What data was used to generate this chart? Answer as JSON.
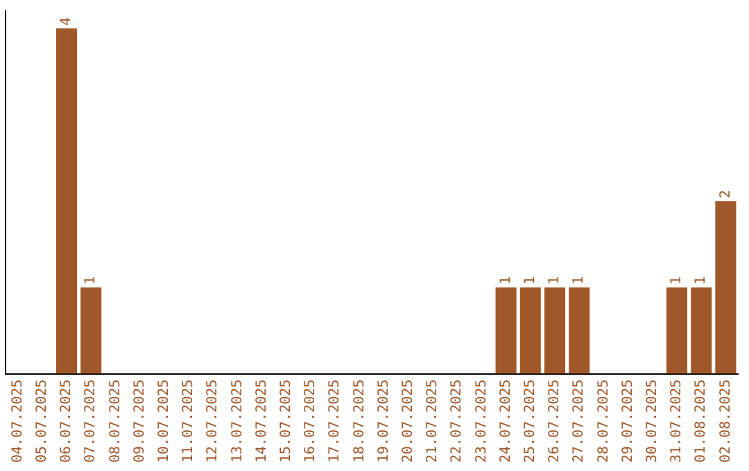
{
  "chart_data": {
    "type": "bar",
    "categories": [
      "04.07.2025",
      "05.07.2025",
      "06.07.2025",
      "07.07.2025",
      "08.07.2025",
      "09.07.2025",
      "10.07.2025",
      "11.07.2025",
      "12.07.2025",
      "13.07.2025",
      "14.07.2025",
      "15.07.2025",
      "16.07.2025",
      "17.07.2025",
      "18.07.2025",
      "19.07.2025",
      "20.07.2025",
      "21.07.2025",
      "22.07.2025",
      "23.07.2025",
      "24.07.2025",
      "25.07.2025",
      "26.07.2025",
      "27.07.2025",
      "28.07.2025",
      "29.07.2025",
      "30.07.2025",
      "31.07.2025",
      "01.08.2025",
      "02.08.2025"
    ],
    "values": [
      0,
      0,
      4,
      1,
      0,
      0,
      0,
      0,
      0,
      0,
      0,
      0,
      0,
      0,
      0,
      0,
      0,
      0,
      0,
      0,
      1,
      1,
      1,
      1,
      0,
      0,
      0,
      1,
      1,
      2
    ],
    "value_labels": [
      null,
      null,
      "4",
      "1",
      null,
      null,
      null,
      null,
      null,
      null,
      null,
      null,
      null,
      null,
      null,
      null,
      null,
      null,
      null,
      null,
      "1",
      "1",
      "1",
      "1",
      null,
      null,
      null,
      "1",
      "1",
      "2"
    ],
    "color": "#a0582a",
    "ylim": [
      0,
      4.2
    ],
    "tick_labels": "x",
    "grid": false,
    "legend": false
  }
}
